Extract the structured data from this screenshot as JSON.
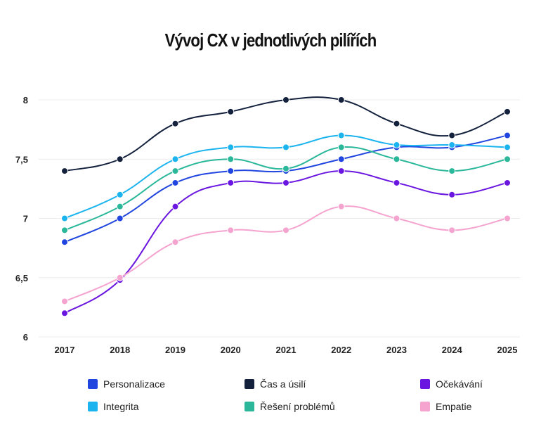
{
  "chart_data": {
    "type": "line",
    "title": "Vývoj CX v jednotlivých pilířích",
    "xlabel": "",
    "ylabel": "",
    "x": [
      "2017",
      "2018",
      "2019",
      "2020",
      "2021",
      "2022",
      "2023",
      "2024",
      "2025"
    ],
    "ylim": [
      6,
      8
    ],
    "yticks": [
      "6",
      "6,5",
      "7",
      "7,5",
      "8"
    ],
    "grid": true,
    "legend_position": "bottom",
    "series": [
      {
        "name": "Personalizace",
        "color": "#2146e0",
        "values": [
          6.8,
          7.0,
          7.3,
          7.4,
          7.4,
          7.5,
          7.6,
          7.6,
          7.7
        ]
      },
      {
        "name": "Čas a úsilí",
        "color": "#14213d",
        "values": [
          7.4,
          7.5,
          7.8,
          7.9,
          8.0,
          8.0,
          7.8,
          7.7,
          7.9
        ]
      },
      {
        "name": "Očekávání",
        "color": "#6a16e0",
        "values": [
          6.2,
          6.48,
          7.1,
          7.3,
          7.3,
          7.4,
          7.3,
          7.2,
          7.3
        ]
      },
      {
        "name": "Integrita",
        "color": "#1bb4ef",
        "values": [
          7.0,
          7.2,
          7.5,
          7.6,
          7.6,
          7.7,
          7.62,
          7.62,
          7.6
        ]
      },
      {
        "name": "Řešení problémů",
        "color": "#2bb89a",
        "values": [
          6.9,
          7.1,
          7.4,
          7.5,
          7.42,
          7.6,
          7.5,
          7.4,
          7.5
        ]
      },
      {
        "name": "Empatie",
        "color": "#f5a3cf",
        "values": [
          6.3,
          6.5,
          6.8,
          6.9,
          6.9,
          7.1,
          7.0,
          6.9,
          7.0
        ]
      }
    ]
  }
}
